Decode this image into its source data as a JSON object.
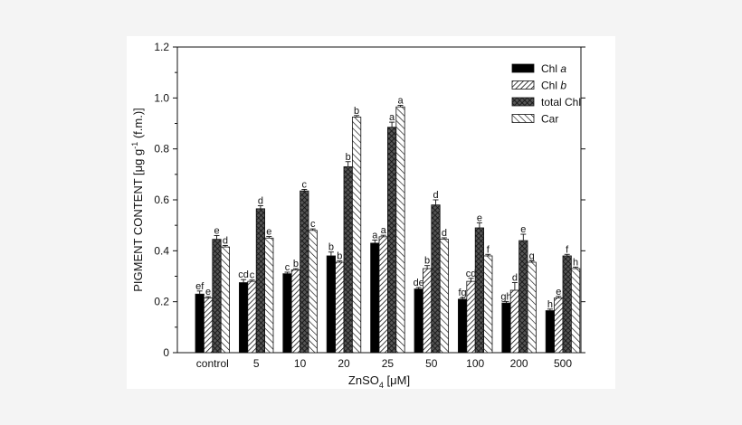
{
  "chart_data": {
    "type": "bar",
    "title": "",
    "xlabel": "ZnSO",
    "xlabel_sub": "4",
    "xlabel_unit": " [μM]",
    "ylabel": "PIGMENT CONTENT [μg g",
    "ylabel_sup": "-1",
    "ylabel_tail": " (f.m.)]",
    "ylim": [
      0,
      1.2
    ],
    "yticks": [
      "0",
      "0.2",
      "0.4",
      "0.6",
      "0.8",
      "1.0",
      "1.2"
    ],
    "categories": [
      "control",
      "5",
      "10",
      "20",
      "25",
      "50",
      "100",
      "200",
      "500"
    ],
    "legend_position": "top-right",
    "grid": false,
    "series": [
      {
        "name": "Chl a",
        "fill": "solid",
        "values": [
          0.23,
          0.275,
          0.31,
          0.38,
          0.43,
          0.25,
          0.21,
          0.195,
          0.165
        ],
        "errors": [
          0.012,
          0.012,
          0.006,
          0.015,
          0.012,
          0.006,
          0.006,
          0.006,
          0.006
        ],
        "labels": [
          "ef",
          "cd",
          "c",
          "b",
          "a",
          "de",
          "fg",
          "gh",
          "h"
        ]
      },
      {
        "name": "Chl b",
        "fill": "diag",
        "values": [
          0.215,
          0.28,
          0.325,
          0.355,
          0.455,
          0.33,
          0.28,
          0.245,
          0.215
        ],
        "errors": [
          0.005,
          0.005,
          0.005,
          0.005,
          0.006,
          0.012,
          0.012,
          0.03,
          0.006
        ],
        "labels": [
          "e",
          "c",
          "b",
          "b",
          "a",
          "b",
          "cd",
          "d",
          "e"
        ]
      },
      {
        "name": "total Chl",
        "fill": "cross",
        "values": [
          0.445,
          0.565,
          0.635,
          0.73,
          0.885,
          0.58,
          0.49,
          0.44,
          0.38
        ],
        "errors": [
          0.015,
          0.012,
          0.006,
          0.02,
          0.02,
          0.02,
          0.02,
          0.025,
          0.006
        ],
        "labels": [
          "e",
          "d",
          "c",
          "b",
          "a",
          "d",
          "e",
          "e",
          "f"
        ]
      },
      {
        "name": "Car",
        "fill": "diag-wide",
        "values": [
          0.415,
          0.45,
          0.48,
          0.925,
          0.965,
          0.445,
          0.38,
          0.355,
          0.33
        ],
        "errors": [
          0.006,
          0.006,
          0.006,
          0.006,
          0.006,
          0.006,
          0.006,
          0.006,
          0.006
        ],
        "labels": [
          "d",
          "e",
          "c",
          "b",
          "a",
          "d",
          "f",
          "g",
          "h"
        ]
      }
    ]
  },
  "legend": {
    "entries": [
      {
        "base": "Chl ",
        "italic": "a"
      },
      {
        "base": "Chl ",
        "italic": "b"
      },
      {
        "base": "total Chl",
        "italic": ""
      },
      {
        "base": "Car",
        "italic": ""
      }
    ]
  },
  "colors": {
    "background": "#f4f4f4",
    "plot": "#ffffff",
    "ink": "#111111"
  }
}
